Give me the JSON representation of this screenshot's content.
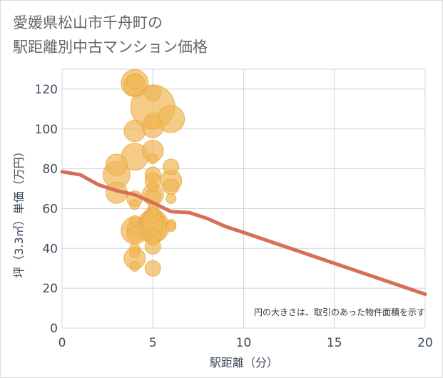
{
  "chart_data": {
    "type": "scatter",
    "title_lines": [
      "愛媛県松山市千舟町の",
      "駅距離別中古マンション価格"
    ],
    "xlabel": "駅距離（分）",
    "ylabel": "坪（3.3㎡）単価（万円）",
    "xlim": [
      0,
      20
    ],
    "ylim": [
      0,
      130
    ],
    "x_ticks": [
      "0",
      "5",
      "10",
      "15",
      "20"
    ],
    "y_ticks": [
      "0",
      "20",
      "40",
      "60",
      "80",
      "100",
      "120"
    ],
    "x_tick_values": [
      0,
      5,
      10,
      15,
      20
    ],
    "y_tick_values": [
      0,
      20,
      40,
      60,
      80,
      100,
      120
    ],
    "grid": true,
    "note": "円の大きさは、取引のあった物件面積を示す",
    "colors": {
      "bubble": "#f0b95a",
      "bubble_stroke": "#e8a63c",
      "line": "#d4705a",
      "grid": "#cdd5dd",
      "axis_text": "#3d4a5c"
    },
    "points": [
      {
        "x": 3,
        "y": 82,
        "s": 3
      },
      {
        "x": 3,
        "y": 77,
        "s": 4
      },
      {
        "x": 3,
        "y": 68,
        "s": 3
      },
      {
        "x": 4,
        "y": 123,
        "s": 4
      },
      {
        "x": 4,
        "y": 124,
        "s": 2
      },
      {
        "x": 4,
        "y": 122,
        "s": 3
      },
      {
        "x": 4,
        "y": 99,
        "s": 3
      },
      {
        "x": 4,
        "y": 86,
        "s": 4
      },
      {
        "x": 4,
        "y": 65,
        "s": 2
      },
      {
        "x": 4,
        "y": 62,
        "s": 1
      },
      {
        "x": 4,
        "y": 54,
        "s": 1
      },
      {
        "x": 4,
        "y": 50,
        "s": 2
      },
      {
        "x": 4,
        "y": 49,
        "s": 4
      },
      {
        "x": 4,
        "y": 47,
        "s": 2
      },
      {
        "x": 4,
        "y": 40,
        "s": 1
      },
      {
        "x": 4,
        "y": 38,
        "s": 1
      },
      {
        "x": 4,
        "y": 35,
        "s": 3
      },
      {
        "x": 4,
        "y": 31,
        "s": 1
      },
      {
        "x": 5,
        "y": 118,
        "s": 2
      },
      {
        "x": 5,
        "y": 111,
        "s": 7
      },
      {
        "x": 5,
        "y": 104,
        "s": 2
      },
      {
        "x": 5,
        "y": 101,
        "s": 3
      },
      {
        "x": 5,
        "y": 89,
        "s": 3
      },
      {
        "x": 5,
        "y": 85,
        "s": 1
      },
      {
        "x": 5,
        "y": 77,
        "s": 2
      },
      {
        "x": 5,
        "y": 74,
        "s": 2
      },
      {
        "x": 5,
        "y": 71,
        "s": 1
      },
      {
        "x": 5,
        "y": 67,
        "s": 3
      },
      {
        "x": 5,
        "y": 66,
        "s": 2
      },
      {
        "x": 5,
        "y": 60,
        "s": 1
      },
      {
        "x": 5,
        "y": 58,
        "s": 1
      },
      {
        "x": 5,
        "y": 57,
        "s": 2
      },
      {
        "x": 5,
        "y": 55,
        "s": 3
      },
      {
        "x": 5,
        "y": 53,
        "s": 3
      },
      {
        "x": 5,
        "y": 52,
        "s": 4
      },
      {
        "x": 5,
        "y": 51,
        "s": 5
      },
      {
        "x": 5,
        "y": 50,
        "s": 4
      },
      {
        "x": 5,
        "y": 46,
        "s": 2
      },
      {
        "x": 5,
        "y": 44,
        "s": 1
      },
      {
        "x": 5,
        "y": 41,
        "s": 2
      },
      {
        "x": 5,
        "y": 30,
        "s": 2
      },
      {
        "x": 6,
        "y": 105,
        "s": 4
      },
      {
        "x": 6,
        "y": 81,
        "s": 2
      },
      {
        "x": 6,
        "y": 74,
        "s": 3
      },
      {
        "x": 6,
        "y": 71,
        "s": 2
      },
      {
        "x": 6,
        "y": 65,
        "s": 1
      },
      {
        "x": 6,
        "y": 52,
        "s": 1
      },
      {
        "x": 6,
        "y": 51,
        "s": 1
      }
    ],
    "trend": [
      {
        "x": 0,
        "y": 78.5
      },
      {
        "x": 1,
        "y": 77
      },
      {
        "x": 2,
        "y": 72
      },
      {
        "x": 3,
        "y": 69
      },
      {
        "x": 4,
        "y": 67
      },
      {
        "x": 5,
        "y": 63
      },
      {
        "x": 6,
        "y": 58.5
      },
      {
        "x": 7,
        "y": 58
      },
      {
        "x": 8,
        "y": 55
      },
      {
        "x": 9,
        "y": 51
      },
      {
        "x": 10,
        "y": 48
      },
      {
        "x": 20,
        "y": 17
      }
    ]
  }
}
